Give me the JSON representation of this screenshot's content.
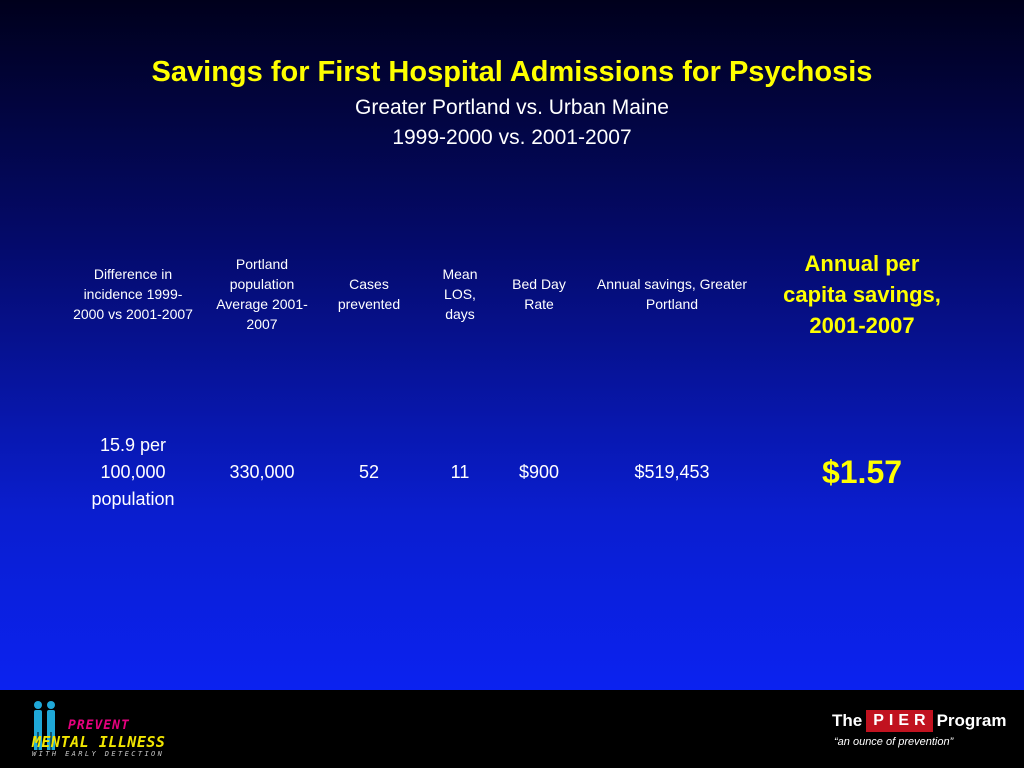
{
  "slide": {
    "title": "Savings for First Hospital Admissions for Psychosis",
    "subtitle_line1": "Greater Portland vs. Urban Maine",
    "subtitle_line2": "1999-2000 vs. 2001-2007"
  },
  "table": {
    "headers": [
      "Difference in incidence 1999-2000 vs 2001-2007",
      "Portland population Average 2001-2007",
      "Cases prevented",
      "Mean LOS, days",
      "Bed Day Rate",
      "Annual savings, Greater Portland",
      "Annual per capita savings, 2001-2007"
    ],
    "values": [
      "15.9 per 100,000 population",
      "330,000",
      "52",
      "11",
      "$900",
      "$519,453",
      "$1.57"
    ],
    "highlight_color": "#ffff00"
  },
  "footer": {
    "left_logo": {
      "line1": "PREVENT",
      "line2": "MENTAL ILLNESS",
      "line3": "WITH EARLY DETECTION",
      "icon": "two-figures-icon"
    },
    "right_logo": {
      "prefix": "The",
      "brand": "PIER",
      "suffix": "Program",
      "tagline": "“an ounce of prevention”",
      "brand_color": "#c1121f"
    }
  }
}
